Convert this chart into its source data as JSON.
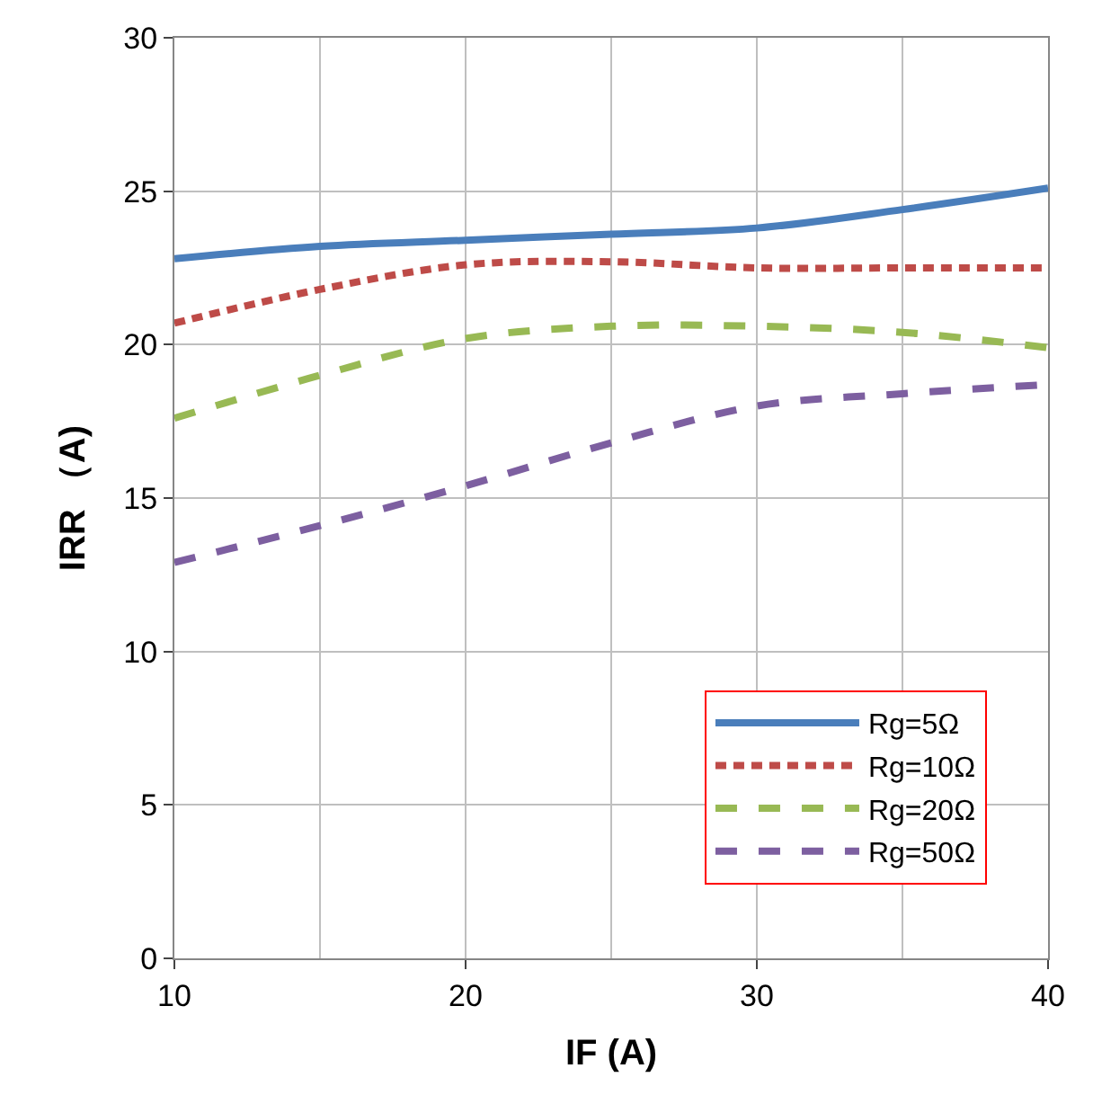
{
  "chart_data": {
    "type": "line",
    "xlabel": "IF (A)",
    "ylabel": "IRR （A)",
    "x": [
      10,
      15,
      20,
      25,
      30,
      35,
      40
    ],
    "xlim": [
      10,
      40
    ],
    "xticks": [
      10,
      20,
      30,
      40
    ],
    "ylim": [
      0,
      30
    ],
    "yticks": [
      0,
      5,
      10,
      15,
      20,
      25,
      30
    ],
    "grid": true,
    "legend": "bottom right",
    "marker": "none",
    "series": [
      {
        "name": "Rg=5Ω",
        "color": "#4a7ebb",
        "line_style": "solid",
        "values": [
          22.8,
          23.2,
          23.4,
          23.6,
          23.8,
          24.4,
          25.1
        ]
      },
      {
        "name": "Rg=10Ω",
        "color": "#be4b48",
        "line_style": "dotted",
        "values": [
          20.7,
          21.8,
          22.6,
          22.7,
          22.5,
          22.5,
          22.5
        ]
      },
      {
        "name": "Rg=20Ω",
        "color": "#98b954",
        "line_style": "dashed",
        "values": [
          17.6,
          19.0,
          20.2,
          20.6,
          20.6,
          20.4,
          19.9
        ]
      },
      {
        "name": "Rg=50Ω",
        "color": "#7d5fa0",
        "line_style": "dashed",
        "values": [
          12.9,
          14.1,
          15.4,
          16.8,
          18.0,
          18.4,
          18.7
        ]
      }
    ]
  }
}
